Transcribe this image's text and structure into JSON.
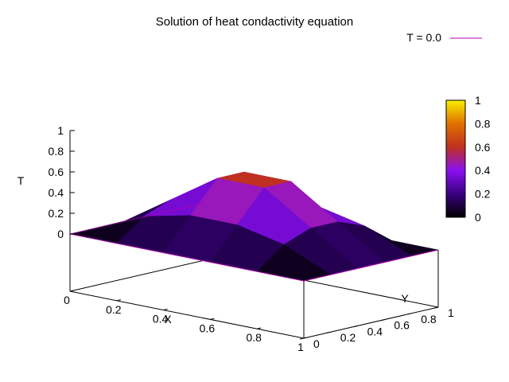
{
  "chart_data": {
    "type": "surface3d",
    "title": "Solution of heat condactivity equation",
    "xlabel": "X",
    "ylabel": "Y",
    "zlabel": "T",
    "legend": {
      "label": "T = 0.0",
      "color": "#b000b0",
      "placement": "top-right"
    },
    "xlim": [
      0,
      1
    ],
    "ylim": [
      0,
      1
    ],
    "zlim": [
      0,
      1
    ],
    "xticks": [
      "0",
      "0.2",
      "0.4",
      "0.6",
      "0.8",
      "1"
    ],
    "yticks": [
      "0",
      "0.2",
      "0.4",
      "0.6",
      "0.8",
      "1"
    ],
    "zticks": [
      "0",
      "0.2",
      "0.4",
      "0.6",
      "0.8",
      "1"
    ],
    "colorbar": {
      "ticks": [
        "0",
        "0.2",
        "0.4",
        "0.6",
        "0.8",
        "1"
      ],
      "palette": [
        "#000000",
        "#3a0080",
        "#8a10f0",
        "#c03020",
        "#e07000",
        "#f8f000"
      ]
    },
    "x": [
      0,
      0.2,
      0.4,
      0.6,
      0.8,
      1
    ],
    "y": [
      0,
      0.2,
      0.4,
      0.6,
      0.8,
      1
    ],
    "z": [
      [
        0,
        0,
        0,
        0,
        0,
        0
      ],
      [
        0,
        0.2,
        0.3,
        0.3,
        0.2,
        0
      ],
      [
        0,
        0.3,
        0.6,
        0.6,
        0.3,
        0
      ],
      [
        0,
        0.3,
        0.6,
        0.6,
        0.3,
        0
      ],
      [
        0,
        0.2,
        0.3,
        0.3,
        0.2,
        0
      ],
      [
        0,
        0,
        0,
        0,
        0,
        0
      ]
    ]
  }
}
